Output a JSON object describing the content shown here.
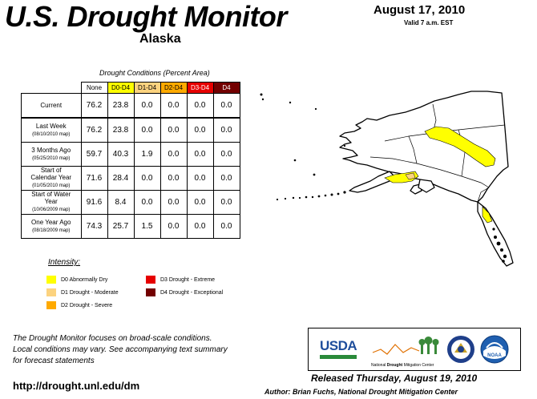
{
  "header": {
    "title": "U.S. Drought Monitor",
    "region": "Alaska",
    "date": "August 17, 2010",
    "valid": "Valid 7 a.m. EST"
  },
  "table": {
    "caption": "Drought Conditions (Percent Area)",
    "columns": [
      "None",
      "D0-D4",
      "D1-D4",
      "D2-D4",
      "D3-D4",
      "D4"
    ],
    "rows": [
      {
        "label": "Current",
        "sub": "",
        "values": [
          "76.2",
          "23.8",
          "0.0",
          "0.0",
          "0.0",
          "0.0"
        ]
      },
      {
        "label": "Last Week",
        "sub": "(08/10/2010 map)",
        "values": [
          "76.2",
          "23.8",
          "0.0",
          "0.0",
          "0.0",
          "0.0"
        ]
      },
      {
        "label": "3 Months Ago",
        "sub": "(05/25/2010 map)",
        "values": [
          "59.7",
          "40.3",
          "1.9",
          "0.0",
          "0.0",
          "0.0"
        ]
      },
      {
        "label": "Start of Calendar Year",
        "sub": "(01/05/2010 map)",
        "values": [
          "71.6",
          "28.4",
          "0.0",
          "0.0",
          "0.0",
          "0.0"
        ]
      },
      {
        "label": "Start of Water Year",
        "sub": "(10/06/2009 map)",
        "values": [
          "91.6",
          "8.4",
          "0.0",
          "0.0",
          "0.0",
          "0.0"
        ]
      },
      {
        "label": "One Year Ago",
        "sub": "(08/18/2009 map)",
        "values": [
          "74.3",
          "25.7",
          "1.5",
          "0.0",
          "0.0",
          "0.0"
        ]
      }
    ]
  },
  "legend": {
    "title": "Intensity:",
    "items": [
      {
        "label": "D0 Abnormally Dry",
        "color": "#ffff00"
      },
      {
        "label": "D1 Drought - Moderate",
        "color": "#fcd37f"
      },
      {
        "label": "D2 Drought - Severe",
        "color": "#ffaa00"
      },
      {
        "label": "D3 Drought - Extreme",
        "color": "#e60000"
      },
      {
        "label": "D4 Drought - Exceptional",
        "color": "#730000"
      }
    ]
  },
  "footer": {
    "note_lines": [
      "The Drought Monitor focuses on broad-scale conditions.",
      "Local conditions may vary. See accompanying text summary",
      "for forecast statements"
    ],
    "url": "http://drought.unl.edu/dm",
    "released": "Released Thursday, August 19, 2010",
    "author": "Author: Brian Fuchs, National Drought Mitigation Center"
  },
  "logos": {
    "usda": "USDA",
    "ndmc_prefix": "National",
    "ndmc_emph": "Drought",
    "ndmc_suffix": "Mitigation Center",
    "noaa": "NOAA"
  }
}
